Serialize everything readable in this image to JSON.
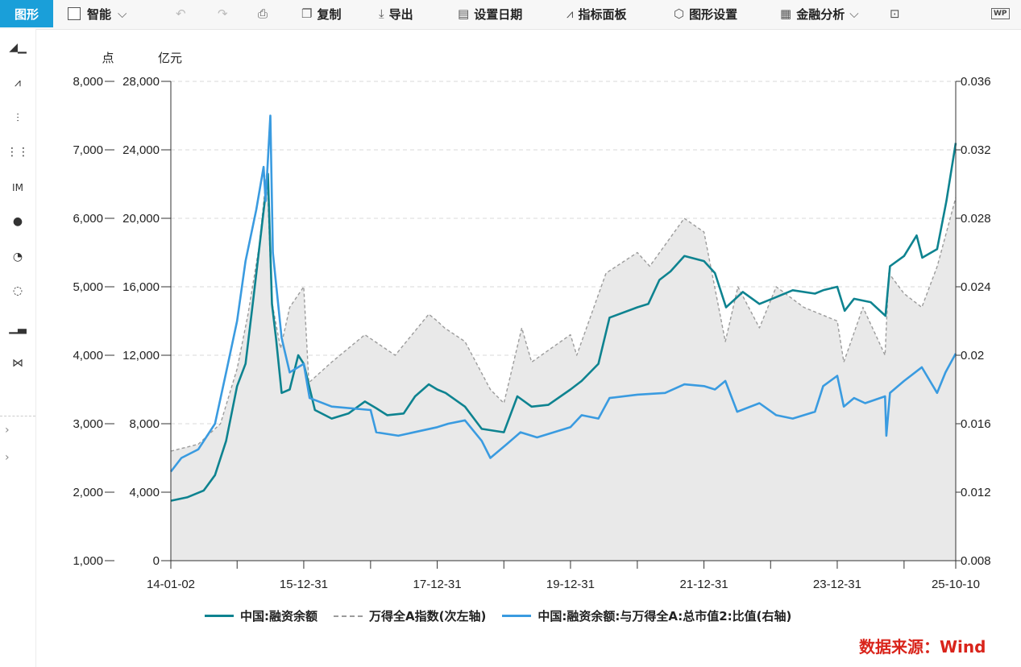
{
  "toolbar": {
    "active_tab": "图形",
    "smart": "智能",
    "copy": "复制",
    "export": "导出",
    "set_date": "设置日期",
    "indicator_panel": "指标面板",
    "chart_settings": "图形设置",
    "financial_analysis": "金融分析",
    "wps_badge": "WP"
  },
  "sidebar": {
    "icons": [
      "area-chart-icon",
      "line-chart-icon",
      "bar-chart-icon",
      "stacked-bar-icon",
      "im-icon",
      "scatter-icon",
      "pie-icon",
      "ring-icon",
      "histogram-icon",
      "bowtie-icon"
    ],
    "im_label": "IM"
  },
  "source": "数据来源：Wind",
  "colors": {
    "teal": "#0e8390",
    "blue": "#3a9be0",
    "gray": "#9c9c9c",
    "area": "#e9e9e9",
    "accent": "#1a9fd9",
    "source": "#d9241b"
  },
  "chart_data": {
    "type": "line",
    "units": {
      "left_outer": "点",
      "left_inner": "亿元"
    },
    "x_ticks": [
      "14-01-02",
      "15-12-31",
      "17-12-31",
      "19-12-31",
      "21-12-31",
      "23-12-31",
      "25-10-10"
    ],
    "x_range": [
      "2014-01-02",
      "2025-10-10"
    ],
    "axes": {
      "left_outer": {
        "ticks": [
          "1,000",
          "2,000",
          "3,000",
          "4,000",
          "5,000",
          "6,000",
          "7,000",
          "8,000"
        ],
        "range": [
          1000,
          8000
        ]
      },
      "left_inner": {
        "ticks": [
          "0",
          "4,000",
          "8,000",
          "12,000",
          "16,000",
          "20,000",
          "24,000",
          "28,000"
        ],
        "range": [
          0,
          28000
        ]
      },
      "right": {
        "ticks": [
          "0.008",
          "0.012",
          "0.016",
          "0.02",
          "0.024",
          "0.028",
          "0.032",
          "0.036"
        ],
        "range": [
          0.008,
          0.036
        ]
      }
    },
    "grid": true,
    "legend_position": "bottom",
    "series": [
      {
        "name": "中国:融资余额",
        "axis": "left_inner",
        "style": "solid",
        "points": [
          [
            "2014-01-02",
            3500
          ],
          [
            "2014-04-01",
            3700
          ],
          [
            "2014-07-01",
            4100
          ],
          [
            "2014-09-01",
            5000
          ],
          [
            "2014-11-01",
            7000
          ],
          [
            "2014-12-31",
            10200
          ],
          [
            "2015-02-15",
            11500
          ],
          [
            "2015-04-01",
            15500
          ],
          [
            "2015-05-15",
            19500
          ],
          [
            "2015-06-18",
            22600
          ],
          [
            "2015-07-10",
            15000
          ],
          [
            "2015-08-01",
            13000
          ],
          [
            "2015-09-01",
            9800
          ],
          [
            "2015-10-15",
            10000
          ],
          [
            "2015-12-01",
            12000
          ],
          [
            "2015-12-31",
            11500
          ],
          [
            "2016-03-01",
            8800
          ],
          [
            "2016-06-01",
            8300
          ],
          [
            "2016-09-01",
            8600
          ],
          [
            "2016-11-30",
            9300
          ],
          [
            "2017-02-01",
            8900
          ],
          [
            "2017-04-01",
            8500
          ],
          [
            "2017-06-30",
            8600
          ],
          [
            "2017-09-01",
            9600
          ],
          [
            "2017-11-15",
            10300
          ],
          [
            "2017-12-31",
            10000
          ],
          [
            "2018-02-15",
            9800
          ],
          [
            "2018-06-01",
            9000
          ],
          [
            "2018-09-01",
            7700
          ],
          [
            "2018-12-31",
            7500
          ],
          [
            "2019-03-15",
            9600
          ],
          [
            "2019-06-01",
            9000
          ],
          [
            "2019-09-01",
            9100
          ],
          [
            "2019-12-31",
            10000
          ],
          [
            "2020-03-01",
            10500
          ],
          [
            "2020-06-01",
            11500
          ],
          [
            "2020-08-01",
            14200
          ],
          [
            "2020-12-31",
            14800
          ],
          [
            "2021-03-01",
            15000
          ],
          [
            "2021-05-01",
            16400
          ],
          [
            "2021-07-01",
            16900
          ],
          [
            "2021-09-15",
            17800
          ],
          [
            "2021-12-31",
            17500
          ],
          [
            "2022-03-01",
            16800
          ],
          [
            "2022-05-01",
            14800
          ],
          [
            "2022-08-01",
            15700
          ],
          [
            "2022-10-31",
            15000
          ],
          [
            "2023-01-31",
            15400
          ],
          [
            "2023-05-01",
            15800
          ],
          [
            "2023-08-31",
            15600
          ],
          [
            "2023-10-15",
            15800
          ],
          [
            "2023-12-31",
            16000
          ],
          [
            "2024-02-10",
            14600
          ],
          [
            "2024-04-01",
            15300
          ],
          [
            "2024-07-01",
            15100
          ],
          [
            "2024-09-20",
            14300
          ],
          [
            "2024-10-15",
            17200
          ],
          [
            "2024-12-31",
            17800
          ],
          [
            "2025-03-10",
            19000
          ],
          [
            "2025-04-10",
            17700
          ],
          [
            "2025-06-30",
            18200
          ],
          [
            "2025-08-20",
            21000
          ],
          [
            "2025-10-10",
            24400
          ]
        ]
      },
      {
        "name": "万得全A指数(次左轴)",
        "axis": "left_outer",
        "style": "dashed",
        "fill": true,
        "points": [
          [
            "2014-01-02",
            2600
          ],
          [
            "2014-06-01",
            2700
          ],
          [
            "2014-10-01",
            3000
          ],
          [
            "2014-12-31",
            3800
          ],
          [
            "2015-03-01",
            4600
          ],
          [
            "2015-05-01",
            5600
          ],
          [
            "2015-06-12",
            6700
          ],
          [
            "2015-07-08",
            4800
          ],
          [
            "2015-08-26",
            4100
          ],
          [
            "2015-10-15",
            4700
          ],
          [
            "2015-12-31",
            5000
          ],
          [
            "2016-01-28",
            3600
          ],
          [
            "2016-06-01",
            3900
          ],
          [
            "2016-11-30",
            4300
          ],
          [
            "2017-05-15",
            4000
          ],
          [
            "2017-11-15",
            4600
          ],
          [
            "2017-12-31",
            4500
          ],
          [
            "2018-02-09",
            4400
          ],
          [
            "2018-06-01",
            4200
          ],
          [
            "2018-10-18",
            3500
          ],
          [
            "2018-12-31",
            3300
          ],
          [
            "2019-04-08",
            4400
          ],
          [
            "2019-06-01",
            3900
          ],
          [
            "2019-12-31",
            4300
          ],
          [
            "2020-02-03",
            4000
          ],
          [
            "2020-07-13",
            5200
          ],
          [
            "2020-12-31",
            5500
          ],
          [
            "2021-03-09",
            5300
          ],
          [
            "2021-09-14",
            6000
          ],
          [
            "2021-12-31",
            5800
          ],
          [
            "2022-04-27",
            4200
          ],
          [
            "2022-07-05",
            5000
          ],
          [
            "2022-10-31",
            4400
          ],
          [
            "2023-01-31",
            5000
          ],
          [
            "2023-07-01",
            4700
          ],
          [
            "2023-12-31",
            4500
          ],
          [
            "2024-02-05",
            3900
          ],
          [
            "2024-05-20",
            4700
          ],
          [
            "2024-09-18",
            4000
          ],
          [
            "2024-10-08",
            5200
          ],
          [
            "2024-12-31",
            4900
          ],
          [
            "2025-04-07",
            4700
          ],
          [
            "2025-07-01",
            5300
          ],
          [
            "2025-10-10",
            6300
          ]
        ]
      },
      {
        "name": "中国:融资余额:与万得全A:总市值2:比值(右轴)",
        "axis": "right",
        "style": "solid",
        "points": [
          [
            "2014-01-02",
            0.0132
          ],
          [
            "2014-03-01",
            0.014
          ],
          [
            "2014-06-01",
            0.0145
          ],
          [
            "2014-09-01",
            0.016
          ],
          [
            "2014-11-01",
            0.019
          ],
          [
            "2014-12-31",
            0.022
          ],
          [
            "2015-02-15",
            0.0255
          ],
          [
            "2015-04-15",
            0.0285
          ],
          [
            "2015-05-25",
            0.031
          ],
          [
            "2015-06-05",
            0.029
          ],
          [
            "2015-07-01",
            0.034
          ],
          [
            "2015-07-15",
            0.026
          ],
          [
            "2015-09-01",
            0.021
          ],
          [
            "2015-10-15",
            0.019
          ],
          [
            "2015-12-31",
            0.0195
          ],
          [
            "2016-02-01",
            0.0175
          ],
          [
            "2016-06-01",
            0.017
          ],
          [
            "2016-12-31",
            0.0168
          ],
          [
            "2017-01-31",
            0.0155
          ],
          [
            "2017-06-01",
            0.0153
          ],
          [
            "2017-12-31",
            0.0158
          ],
          [
            "2018-03-01",
            0.016
          ],
          [
            "2018-06-01",
            0.0162
          ],
          [
            "2018-09-01",
            0.015
          ],
          [
            "2018-10-18",
            0.014
          ],
          [
            "2019-01-15",
            0.0148
          ],
          [
            "2019-04-01",
            0.0155
          ],
          [
            "2019-07-01",
            0.0152
          ],
          [
            "2019-12-31",
            0.0158
          ],
          [
            "2020-03-01",
            0.0165
          ],
          [
            "2020-06-01",
            0.0163
          ],
          [
            "2020-08-01",
            0.0175
          ],
          [
            "2020-12-31",
            0.0177
          ],
          [
            "2021-06-01",
            0.0178
          ],
          [
            "2021-09-15",
            0.0183
          ],
          [
            "2021-12-31",
            0.0182
          ],
          [
            "2022-03-01",
            0.018
          ],
          [
            "2022-04-27",
            0.0185
          ],
          [
            "2022-07-01",
            0.0167
          ],
          [
            "2022-10-31",
            0.0172
          ],
          [
            "2023-01-31",
            0.0165
          ],
          [
            "2023-05-01",
            0.0163
          ],
          [
            "2023-08-31",
            0.0167
          ],
          [
            "2023-10-15",
            0.0182
          ],
          [
            "2023-12-31",
            0.0188
          ],
          [
            "2024-02-05",
            0.017
          ],
          [
            "2024-04-01",
            0.0175
          ],
          [
            "2024-06-01",
            0.0172
          ],
          [
            "2024-09-18",
            0.0176
          ],
          [
            "2024-09-25",
            0.0153
          ],
          [
            "2024-10-15",
            0.0178
          ],
          [
            "2024-12-31",
            0.0185
          ],
          [
            "2025-04-07",
            0.0193
          ],
          [
            "2025-06-30",
            0.0178
          ],
          [
            "2025-08-15",
            0.019
          ],
          [
            "2025-10-10",
            0.0201
          ]
        ]
      }
    ]
  }
}
